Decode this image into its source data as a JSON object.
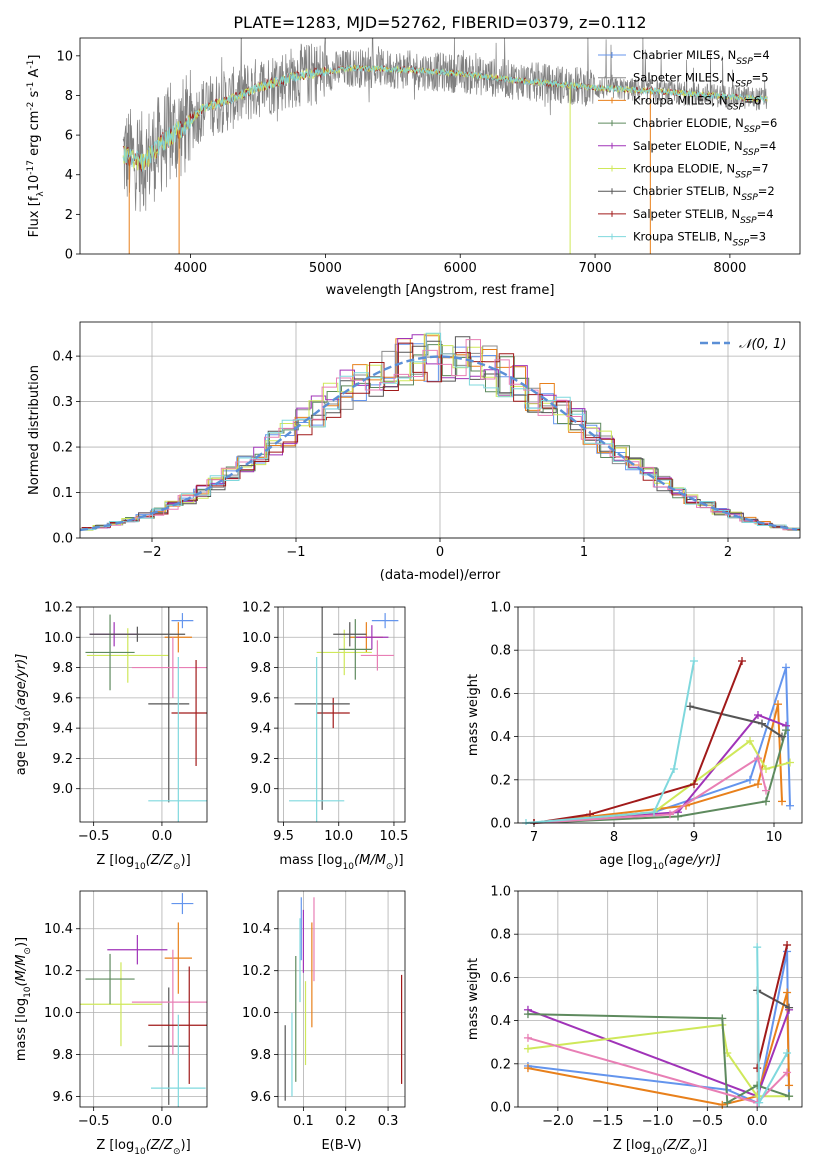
{
  "chart_data": [
    {
      "type": "line",
      "title": "PLATE=1283, MJD=52762, FIBERID=0379, z=0.112",
      "xlabel": "wavelength [Angstrom, rest frame]",
      "ylabel": "Flux [f",
      "ylabel_sub": "λ",
      "ylabel_mid": "10",
      "ylabel_sup1": "-17",
      "ylabel_rest": " erg cm",
      "ylabel_sup2": "-2",
      "ylabel_rest2": " s",
      "ylabel_sup3": "-1",
      "ylabel_rest3": " A",
      "ylabel_sup4": "-1",
      "ylabel_end": "]",
      "xlim": [
        3180,
        8520
      ],
      "ylim": [
        0,
        10.9
      ],
      "xticks": [
        "4000",
        "5000",
        "6000",
        "7000",
        "8000"
      ],
      "yticks": [
        "0",
        "2",
        "4",
        "6",
        "8",
        "10"
      ],
      "wl_range": [
        3500,
        8280
      ],
      "continuum_knots": [
        [
          3500,
          5.0
        ],
        [
          3650,
          4.6
        ],
        [
          3800,
          5.7
        ],
        [
          3950,
          6.4
        ],
        [
          4100,
          7.4
        ],
        [
          4300,
          7.8
        ],
        [
          4500,
          8.4
        ],
        [
          4800,
          9.0
        ],
        [
          5200,
          9.4
        ],
        [
          5600,
          9.3
        ],
        [
          6000,
          9.1
        ],
        [
          6500,
          8.7
        ],
        [
          7000,
          8.4
        ],
        [
          7500,
          8.2
        ],
        [
          8280,
          7.8
        ]
      ],
      "legend_entries": [
        {
          "label": "Chabrier MILES, N",
          "sub": "SSP",
          "n": "=4",
          "color": "#6495ed"
        },
        {
          "label": "Salpeter MILES, N",
          "sub": "SSP",
          "n": "=5",
          "color": "#8b8b8b"
        },
        {
          "label": "Kroupa MILES, N",
          "sub": "SSP",
          "n": "=6",
          "color": "#e8801b"
        },
        {
          "label": "Chabrier ELODIE, N",
          "sub": "SSP",
          "n": "=6",
          "color": "#5e8a5e"
        },
        {
          "label": "Salpeter ELODIE, N",
          "sub": "SSP",
          "n": "=4",
          "color": "#a033b8"
        },
        {
          "label": "Kroupa ELODIE, N",
          "sub": "SSP",
          "n": "=7",
          "color": "#cfe85a"
        },
        {
          "label": "Chabrier STELIB, N",
          "sub": "SSP",
          "n": "=2",
          "color": "#555555"
        },
        {
          "label": "Salpeter STELIB, N",
          "sub": "SSP",
          "n": "=4",
          "color": "#a11a1a"
        },
        {
          "label": "Kroupa STELIB, N",
          "sub": "SSP",
          "n": "=3",
          "color": "#7fd8dd"
        }
      ]
    },
    {
      "type": "bar",
      "xlabel": "(data-model)/error",
      "ylabel": "Normed distribution",
      "xlim": [
        -2.5,
        2.5
      ],
      "ylim": [
        0,
        0.475
      ],
      "xticks": [
        "−2",
        "−1",
        "0",
        "1",
        "2"
      ],
      "yticks": [
        "0.0",
        "0.1",
        "0.2",
        "0.3",
        "0.4"
      ],
      "legend": "𝒩(0, 1)",
      "gaussian_color": "#5b8fd6",
      "bin_edges_start": -2.5,
      "bin_width": 0.1,
      "histogram_colors": [
        "#6495ed",
        "#8b8b8b",
        "#e8801b",
        "#5e8a5e",
        "#a033b8",
        "#cfe85a",
        "#555555",
        "#a11a1a",
        "#e87fb5",
        "#7fd8dd"
      ]
    },
    {
      "type": "scatter",
      "xlabel": "Z [log",
      "xlabel_sub": "10",
      "xlabel_rest": "(Z/Z",
      "xlabel_sub2": "⊙",
      "xlabel_end": ")]",
      "ylabel": "age  [log",
      "ylabel_sub": "10",
      "ylabel_rest": "(age/yr)]",
      "xlim": [
        -0.6,
        0.33
      ],
      "ylim": [
        8.78,
        10.2
      ],
      "xticks": [
        "−0.5",
        "0.0"
      ],
      "yticks": [
        "9.0",
        "9.2",
        "9.4",
        "9.6",
        "9.8",
        "10.0",
        "10.2"
      ],
      "points": [
        {
          "x": 0.15,
          "xerr": 0.08,
          "y": 10.11,
          "yerr": 0.05,
          "color": "#6495ed"
        },
        {
          "x": 0.12,
          "xerr": 0.1,
          "y": 10.0,
          "yerr": 0.1,
          "color": "#e8801b"
        },
        {
          "x": -0.35,
          "xerr": 0.18,
          "y": 10.02,
          "yerr": 0.08,
          "color": "#a033b8"
        },
        {
          "x": -0.25,
          "xerr": 0.3,
          "y": 9.88,
          "yerr": 0.18,
          "color": "#cfe85a"
        },
        {
          "x": -0.38,
          "xerr": 0.18,
          "y": 9.9,
          "yerr": 0.25,
          "color": "#5e8a5e"
        },
        {
          "x": -0.18,
          "xerr": 0.35,
          "y": 10.02,
          "yerr": 0.05,
          "color": "#555555"
        },
        {
          "x": 0.05,
          "xerr": 0.15,
          "y": 9.56,
          "yerr": 0.65,
          "color": "#555555"
        },
        {
          "x": 0.08,
          "xerr": 0.3,
          "y": 9.8,
          "yerr": 0.2,
          "color": "#e87fb5"
        },
        {
          "x": 0.25,
          "xerr": 0.18,
          "y": 9.5,
          "yerr": 0.35,
          "color": "#a11a1a"
        },
        {
          "x": 0.12,
          "xerr": 0.22,
          "y": 8.92,
          "yerr": 0.95,
          "color": "#7fd8dd"
        }
      ]
    },
    {
      "type": "scatter",
      "xlabel": "mass [log",
      "xlabel_sub": "10",
      "xlabel_rest": "(M/M",
      "xlabel_sub2": "⊙",
      "xlabel_end": ")]",
      "xlim": [
        9.45,
        10.6
      ],
      "ylim": [
        8.78,
        10.2
      ],
      "xticks": [
        "9.5",
        "10.0",
        "10.5"
      ],
      "yticks": [
        "9.0",
        "9.2",
        "9.4",
        "9.6",
        "9.8",
        "10.0",
        "10.2"
      ],
      "points": [
        {
          "x": 10.42,
          "xerr": 0.12,
          "y": 10.11,
          "yerr": 0.05,
          "color": "#6495ed"
        },
        {
          "x": 10.25,
          "xerr": 0.15,
          "y": 10.0,
          "yerr": 0.1,
          "color": "#e8801b"
        },
        {
          "x": 10.3,
          "xerr": 0.15,
          "y": 10.0,
          "yerr": 0.08,
          "color": "#a033b8"
        },
        {
          "x": 10.05,
          "xerr": 0.25,
          "y": 9.9,
          "yerr": 0.15,
          "color": "#cfe85a"
        },
        {
          "x": 10.15,
          "xerr": 0.15,
          "y": 9.92,
          "yerr": 0.2,
          "color": "#5e8a5e"
        },
        {
          "x": 10.1,
          "xerr": 0.15,
          "y": 10.02,
          "yerr": 0.08,
          "color": "#555555"
        },
        {
          "x": 10.35,
          "xerr": 0.15,
          "y": 9.88,
          "yerr": 0.1,
          "color": "#e87fb5"
        },
        {
          "x": 9.95,
          "xerr": 0.15,
          "y": 9.5,
          "yerr": 0.1,
          "color": "#a11a1a"
        },
        {
          "x": 9.85,
          "xerr": 0.25,
          "y": 9.56,
          "yerr": 0.7,
          "color": "#555555"
        },
        {
          "x": 9.8,
          "xerr": 0.25,
          "y": 8.92,
          "yerr": 0.95,
          "color": "#7fd8dd"
        }
      ]
    },
    {
      "type": "line",
      "xlabel": "age  [log",
      "xlabel_sub": "10",
      "xlabel_rest": "(age/yr)]",
      "ylabel": "mass weight",
      "xlim": [
        6.8,
        10.35
      ],
      "ylim": [
        0,
        1.0
      ],
      "xticks": [
        "7",
        "8",
        "9",
        "10"
      ],
      "yticks": [
        "0.0",
        "0.2",
        "0.4",
        "0.6",
        "0.8",
        "1.0"
      ],
      "series": [
        {
          "color": "#6495ed",
          "x": [
            7.0,
            8.5,
            9.7,
            10.15,
            10.2
          ],
          "y": [
            0.0,
            0.05,
            0.2,
            0.72,
            0.08
          ]
        },
        {
          "color": "#e8801b",
          "x": [
            7.0,
            8.9,
            9.8,
            10.05,
            10.1
          ],
          "y": [
            0.0,
            0.08,
            0.18,
            0.55,
            0.1
          ]
        },
        {
          "color": "#a033b8",
          "x": [
            7.0,
            8.8,
            9.8,
            10.15
          ],
          "y": [
            0.0,
            0.05,
            0.5,
            0.45
          ]
        },
        {
          "color": "#cfe85a",
          "x": [
            7.0,
            8.5,
            9.7,
            9.9,
            10.2
          ],
          "y": [
            0.0,
            0.05,
            0.38,
            0.25,
            0.28
          ]
        },
        {
          "color": "#5e8a5e",
          "x": [
            7.0,
            8.8,
            9.9,
            10.15
          ],
          "y": [
            0.0,
            0.03,
            0.1,
            0.43
          ]
        },
        {
          "color": "#555555",
          "x": [
            8.95,
            9.85,
            10.1
          ],
          "y": [
            0.54,
            0.46,
            0.4
          ]
        },
        {
          "color": "#e87fb5",
          "x": [
            7.0,
            8.7,
            9.8,
            9.9
          ],
          "y": [
            0.0,
            0.04,
            0.3,
            0.15
          ]
        },
        {
          "color": "#a11a1a",
          "x": [
            7.0,
            7.7,
            9.0,
            9.6
          ],
          "y": [
            0.0,
            0.04,
            0.18,
            0.75
          ]
        },
        {
          "color": "#7fd8dd",
          "x": [
            6.9,
            8.5,
            8.75,
            9.0
          ],
          "y": [
            0.0,
            0.05,
            0.25,
            0.75
          ]
        }
      ]
    },
    {
      "type": "scatter",
      "xlabel": "Z [log",
      "xlabel_sub": "10",
      "xlabel_rest": "(Z/Z",
      "xlabel_sub2": "⊙",
      "xlabel_end": ")]",
      "ylabel": "mass [log",
      "ylabel_sub": "10",
      "ylabel_rest": "(M/M",
      "ylabel_sub2": "⊙",
      "ylabel_end": ")]",
      "xlim": [
        -0.6,
        0.33
      ],
      "ylim": [
        9.55,
        10.58
      ],
      "xticks": [
        "−0.5",
        "0.0"
      ],
      "yticks": [
        "9.6",
        "9.8",
        "10.0",
        "10.2",
        "10.4"
      ],
      "points": [
        {
          "x": 0.15,
          "xerr": 0.08,
          "y": 10.52,
          "yerr": 0.05,
          "color": "#6495ed"
        },
        {
          "x": 0.12,
          "xerr": 0.1,
          "y": 10.26,
          "yerr": 0.17,
          "color": "#e8801b"
        },
        {
          "x": -0.18,
          "xerr": 0.22,
          "y": 10.3,
          "yerr": 0.07,
          "color": "#a033b8"
        },
        {
          "x": -0.3,
          "xerr": 0.3,
          "y": 10.04,
          "yerr": 0.2,
          "color": "#cfe85a"
        },
        {
          "x": -0.38,
          "xerr": 0.18,
          "y": 10.16,
          "yerr": 0.12,
          "color": "#5e8a5e"
        },
        {
          "x": 0.05,
          "xerr": 0.15,
          "y": 9.84,
          "yerr": 0.28,
          "color": "#555555"
        },
        {
          "x": 0.08,
          "xerr": 0.3,
          "y": 10.05,
          "yerr": 0.25,
          "color": "#e87fb5"
        },
        {
          "x": 0.2,
          "xerr": 0.3,
          "y": 9.94,
          "yerr": 0.28,
          "color": "#a11a1a"
        },
        {
          "x": 0.12,
          "xerr": 0.2,
          "y": 9.64,
          "yerr": 0.35,
          "color": "#7fd8dd"
        }
      ]
    },
    {
      "type": "scatter",
      "xlabel": "E(B-V)",
      "xlim": [
        0.04,
        0.34
      ],
      "ylim": [
        9.55,
        10.58
      ],
      "xticks": [
        "0.1",
        "0.2",
        "0.3"
      ],
      "yticks": [
        "9.6",
        "9.8",
        "10.0",
        "10.2",
        "10.4"
      ],
      "points": [
        {
          "x": 0.095,
          "yerr": 0.15,
          "y": 10.4,
          "color": "#6495ed"
        },
        {
          "x": 0.12,
          "yerr": 0.25,
          "y": 10.18,
          "color": "#e8801b"
        },
        {
          "x": 0.1,
          "yerr": 0.15,
          "y": 10.34,
          "color": "#a033b8"
        },
        {
          "x": 0.105,
          "yerr": 0.2,
          "y": 9.95,
          "color": "#cfe85a"
        },
        {
          "x": 0.082,
          "yerr": 0.3,
          "y": 9.97,
          "color": "#5e8a5e"
        },
        {
          "x": 0.057,
          "yerr": 0.18,
          "y": 9.76,
          "color": "#555555"
        },
        {
          "x": 0.125,
          "yerr": 0.2,
          "y": 10.35,
          "color": "#e87fb5"
        },
        {
          "x": 0.332,
          "yerr": 0.26,
          "y": 9.92,
          "color": "#a11a1a"
        },
        {
          "x": 0.092,
          "yerr": 0.2,
          "y": 10.25,
          "color": "#7fd8dd"
        },
        {
          "x": 0.073,
          "yerr": 0.2,
          "y": 9.8,
          "color": "#7fd8dd"
        }
      ]
    },
    {
      "type": "line",
      "xlabel": "Z [log",
      "xlabel_sub": "10",
      "xlabel_rest": "(Z/Z",
      "xlabel_sub2": "⊙",
      "xlabel_end": ")]",
      "ylabel": "mass weight",
      "xlim": [
        -2.4,
        0.45
      ],
      "ylim": [
        0,
        1.0
      ],
      "xticks": [
        "−2.0",
        "−1.5",
        "−1.0",
        "−0.5",
        "0.0"
      ],
      "yticks": [
        "0.0",
        "0.2",
        "0.4",
        "0.6",
        "0.8",
        "1.0"
      ],
      "series": [
        {
          "color": "#6495ed",
          "x": [
            -2.3,
            -0.3,
            0.0,
            0.3,
            0.32
          ],
          "y": [
            0.19,
            0.08,
            0.02,
            0.72,
            0.05
          ]
        },
        {
          "color": "#e8801b",
          "x": [
            -2.3,
            -0.35,
            0.0,
            0.3,
            0.32
          ],
          "y": [
            0.18,
            0.01,
            0.05,
            0.53,
            0.1
          ]
        },
        {
          "color": "#a033b8",
          "x": [
            -2.3,
            0.0,
            0.32
          ],
          "y": [
            0.45,
            0.05,
            0.45
          ]
        },
        {
          "color": "#cfe85a",
          "x": [
            -2.3,
            -0.35,
            -0.3,
            0.0,
            0.32
          ],
          "y": [
            0.27,
            0.38,
            0.25,
            0.05,
            0.05
          ]
        },
        {
          "color": "#5e8a5e",
          "x": [
            -2.3,
            -0.35,
            -0.3,
            0.0,
            0.32
          ],
          "y": [
            0.43,
            0.41,
            0.02,
            0.1,
            0.05
          ]
        },
        {
          "color": "#555555",
          "x": [
            0.0,
            0.32
          ],
          "y": [
            0.54,
            0.46
          ]
        },
        {
          "color": "#e87fb5",
          "x": [
            -2.3,
            0.0,
            0.3
          ],
          "y": [
            0.32,
            0.02,
            0.16
          ]
        },
        {
          "color": "#a11a1a",
          "x": [
            0.0,
            0.3
          ],
          "y": [
            0.18,
            0.75
          ]
        },
        {
          "color": "#7fd8dd",
          "x": [
            0.0,
            0.02,
            0.3
          ],
          "y": [
            0.74,
            0.02,
            0.25
          ]
        }
      ]
    }
  ]
}
